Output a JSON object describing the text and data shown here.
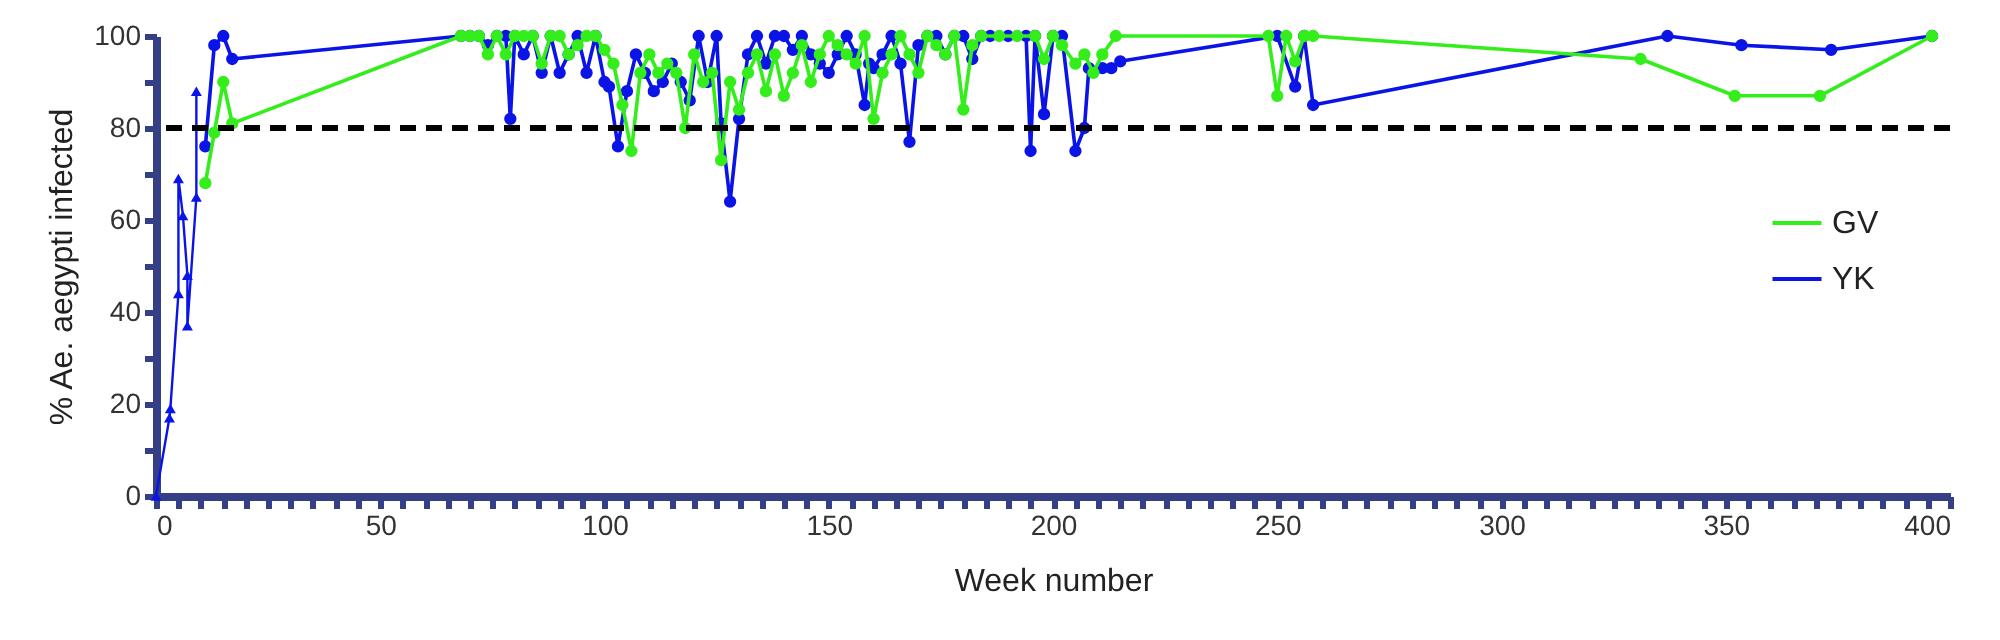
{
  "chart_data": {
    "type": "line",
    "xlabel": "Week number",
    "ylabel": "% Ae. aegypti infected",
    "xlim": [
      0,
      400
    ],
    "ylim": [
      0,
      100
    ],
    "xticks": [
      0,
      {
        "value": 5,
        "label": null
      },
      {
        "value": 10,
        "label": null
      },
      {
        "value": 15,
        "label": null
      },
      {
        "value": 20,
        "label": null
      },
      {
        "value": 25,
        "label": null
      },
      {
        "value": 30,
        "label": null
      },
      {
        "value": 35,
        "label": null
      },
      {
        "value": 40,
        "label": null
      },
      {
        "value": 45,
        "label": null
      },
      50,
      {
        "value": 55,
        "label": null
      },
      {
        "value": 60,
        "label": null
      },
      {
        "value": 65,
        "label": null
      },
      {
        "value": 70,
        "label": null
      },
      {
        "value": 75,
        "label": null
      },
      {
        "value": 80,
        "label": null
      },
      {
        "value": 85,
        "label": null
      },
      {
        "value": 90,
        "label": null
      },
      {
        "value": 95,
        "label": null
      },
      100,
      {
        "value": 105,
        "label": null
      },
      {
        "value": 110,
        "label": null
      },
      {
        "value": 115,
        "label": null
      },
      {
        "value": 120,
        "label": null
      },
      {
        "value": 125,
        "label": null
      },
      {
        "value": 130,
        "label": null
      },
      {
        "value": 135,
        "label": null
      },
      {
        "value": 140,
        "label": null
      },
      {
        "value": 145,
        "label": null
      },
      150,
      {
        "value": 155,
        "label": null
      },
      {
        "value": 160,
        "label": null
      },
      {
        "value": 165,
        "label": null
      },
      {
        "value": 170,
        "label": null
      },
      {
        "value": 175,
        "label": null
      },
      {
        "value": 180,
        "label": null
      },
      {
        "value": 185,
        "label": null
      },
      {
        "value": 190,
        "label": null
      },
      {
        "value": 195,
        "label": null
      },
      200,
      {
        "value": 205,
        "label": null
      },
      {
        "value": 210,
        "label": null
      },
      {
        "value": 215,
        "label": null
      },
      {
        "value": 220,
        "label": null
      },
      {
        "value": 225,
        "label": null
      },
      {
        "value": 230,
        "label": null
      },
      {
        "value": 235,
        "label": null
      },
      {
        "value": 240,
        "label": null
      },
      {
        "value": 245,
        "label": null
      },
      250,
      {
        "value": 255,
        "label": null
      },
      {
        "value": 260,
        "label": null
      },
      {
        "value": 265,
        "label": null
      },
      {
        "value": 270,
        "label": null
      },
      {
        "value": 275,
        "label": null
      },
      {
        "value": 280,
        "label": null
      },
      {
        "value": 285,
        "label": null
      },
      {
        "value": 290,
        "label": null
      },
      {
        "value": 295,
        "label": null
      },
      300,
      {
        "value": 305,
        "label": null
      },
      {
        "value": 310,
        "label": null
      },
      {
        "value": 315,
        "label": null
      },
      {
        "value": 320,
        "label": null
      },
      {
        "value": 325,
        "label": null
      },
      {
        "value": 330,
        "label": null
      },
      {
        "value": 335,
        "label": null
      },
      {
        "value": 340,
        "label": null
      },
      {
        "value": 345,
        "label": null
      },
      350,
      {
        "value": 355,
        "label": null
      },
      {
        "value": 360,
        "label": null
      },
      {
        "value": 365,
        "label": null
      },
      {
        "value": 370,
        "label": null
      },
      {
        "value": 375,
        "label": null
      },
      {
        "value": 380,
        "label": null
      },
      {
        "value": 385,
        "label": null
      },
      {
        "value": 390,
        "label": null
      },
      {
        "value": 395,
        "label": null
      },
      400
    ],
    "yticks": [
      0,
      {
        "value": 10,
        "label": null
      },
      20,
      {
        "value": 30,
        "label": null
      },
      40,
      {
        "value": 50,
        "label": null
      },
      60,
      {
        "value": 70,
        "label": null
      },
      80,
      {
        "value": 90,
        "label": null
      },
      100
    ],
    "grid": false,
    "legend": "right",
    "marker": "circle",
    "line_style": "solid",
    "ref_lines": [
      {
        "axis": "y",
        "value": 80,
        "color": "#000000",
        "line_style": "dashed"
      }
    ],
    "series": [
      {
        "name": "GV",
        "color": "#33ee1a",
        "x": [
          11,
          13,
          15,
          17,
          68,
          70,
          72,
          74,
          76,
          78,
          80,
          82,
          84,
          86,
          88,
          90,
          92,
          94,
          96,
          98,
          100,
          102,
          104,
          106,
          108,
          110,
          112,
          114,
          116,
          118,
          120,
          122,
          124,
          126,
          128,
          130,
          132,
          134,
          136,
          138,
          140,
          142,
          144,
          146,
          148,
          150,
          152,
          154,
          156,
          158,
          160,
          162,
          164,
          166,
          168,
          170,
          172,
          174,
          176,
          178,
          180,
          182,
          184,
          188,
          192,
          196,
          198,
          200,
          202,
          205,
          207,
          209,
          211,
          214,
          248,
          250,
          252,
          254,
          256,
          258,
          331,
          352,
          371,
          396
        ],
        "values": [
          68,
          79,
          90,
          81,
          100,
          100,
          100,
          96,
          100,
          96,
          100,
          100,
          100,
          94,
          100,
          100,
          96,
          98,
          100,
          100,
          97,
          94,
          85,
          75,
          92,
          96,
          92,
          94,
          92,
          80,
          96,
          90,
          92,
          73,
          90,
          84,
          92,
          96,
          88,
          96,
          87,
          92,
          98,
          90,
          96,
          100,
          98,
          96,
          94,
          100,
          82,
          92,
          96,
          100,
          96,
          92,
          100,
          98,
          96,
          100,
          84,
          98,
          100,
          100,
          100,
          100,
          95,
          100,
          98,
          94,
          96,
          92,
          96,
          100,
          100,
          87,
          100,
          94.5,
          100,
          100,
          95,
          87,
          87,
          100
        ]
      },
      {
        "name": "YK",
        "color": "#0a14e6",
        "x": [
          11,
          13,
          15,
          17,
          68,
          70,
          72,
          74,
          76,
          78,
          79,
          80,
          82,
          84,
          86,
          88,
          90,
          92,
          94,
          96,
          98,
          100,
          101,
          103,
          105,
          107,
          109,
          111,
          113,
          115,
          117,
          119,
          121,
          123,
          125,
          126,
          128,
          130,
          132,
          134,
          136,
          138,
          140,
          142,
          144,
          146,
          148,
          150,
          152,
          154,
          156,
          158,
          159,
          160,
          162,
          164,
          166,
          168,
          170,
          172,
          174,
          176,
          178,
          180,
          182,
          184,
          186,
          190,
          194,
          195,
          196,
          198,
          200,
          202,
          205,
          207,
          208,
          211,
          213,
          215,
          250,
          254,
          256,
          258,
          337,
          353.5,
          373.5,
          396
        ],
        "values": [
          76,
          98,
          100,
          95,
          100,
          100,
          100,
          98,
          100,
          100,
          82,
          100,
          96,
          100,
          92,
          100,
          92,
          96,
          100,
          92,
          100,
          90,
          89,
          76,
          88,
          96,
          92,
          88,
          90,
          94,
          90,
          86,
          100,
          90,
          100,
          81,
          64,
          82,
          96,
          100,
          94,
          100,
          100,
          97,
          100,
          96,
          94,
          92,
          96,
          100,
          96,
          85,
          94,
          93,
          96,
          100,
          94,
          77,
          98,
          100,
          100,
          96,
          100,
          100,
          95,
          100,
          100,
          100,
          100,
          75,
          100,
          83,
          100,
          100,
          75,
          80,
          93,
          93,
          93,
          94.5,
          100,
          89,
          100,
          85,
          100,
          98,
          97,
          100
        ]
      },
      {
        "color": "#0a14e6",
        "marker": "triangle",
        "x": [
          0,
          3,
          3.2,
          5,
          5,
          6,
          7,
          7,
          9,
          9
        ],
        "values": [
          0,
          17,
          19,
          44,
          69,
          61,
          48,
          37,
          65,
          88
        ]
      }
    ]
  }
}
